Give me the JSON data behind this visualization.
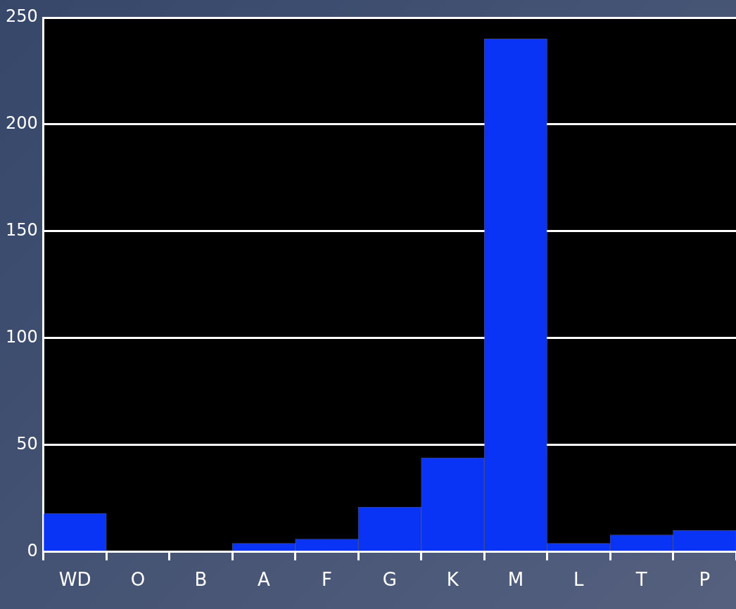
{
  "chart_data": {
    "type": "bar",
    "categories": [
      "WD",
      "O",
      "B",
      "A",
      "F",
      "G",
      "K",
      "M",
      "L",
      "T",
      "P"
    ],
    "values": [
      18,
      0,
      0,
      4,
      6,
      21,
      44,
      240,
      4,
      8,
      10
    ],
    "color": "#0a34f5",
    "ylim": [
      0,
      250
    ],
    "yticks": [
      0,
      50,
      100,
      150,
      200,
      250
    ],
    "grid": "y"
  }
}
